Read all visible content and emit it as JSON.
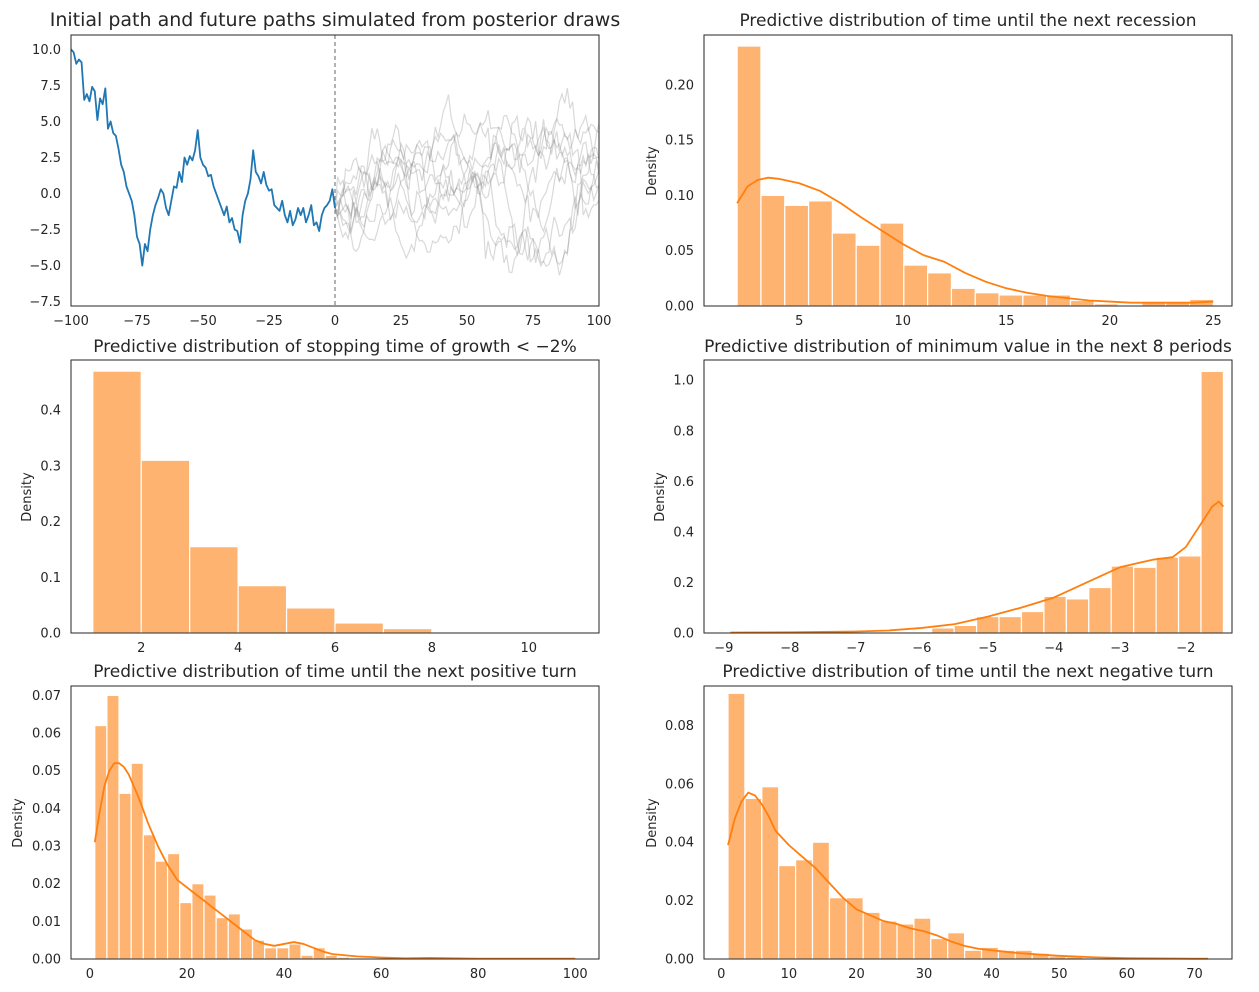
{
  "chart_data": [
    {
      "type": "line",
      "title": "Initial path and future paths simulated from posterior draws",
      "xlim": [
        -100,
        100
      ],
      "ylim": [
        -7.8,
        11
      ],
      "xticks": [
        "−100",
        "−75",
        "−50",
        "−25",
        "0",
        "25",
        "50",
        "75",
        "100"
      ],
      "yticks": [
        "−7.5",
        "−5.0",
        "−2.5",
        "0.0",
        "2.5",
        "5.0",
        "7.5",
        "10.0"
      ],
      "vline_x": 0,
      "series": [
        {
          "role": "initial",
          "color": "#1f77b4",
          "x": [
            -100,
            -99,
            -98,
            -97,
            -96,
            -95,
            -94,
            -93,
            -92,
            -91,
            -90,
            -89,
            -88,
            -87,
            -86,
            -85,
            -84,
            -83,
            -82,
            -81,
            -80,
            -79,
            -78,
            -77,
            -76,
            -75,
            -74,
            -73,
            -72,
            -71,
            -70,
            -69,
            -68,
            -67,
            -66,
            -65,
            -64,
            -63,
            -62,
            -61,
            -60,
            -59,
            -58,
            -57,
            -56,
            -55,
            -54,
            -53,
            -52,
            -51,
            -50,
            -49,
            -48,
            -47,
            -46,
            -45,
            -44,
            -43,
            -42,
            -41,
            -40,
            -39,
            -38,
            -37,
            -36,
            -35,
            -34,
            -33,
            -32,
            -31,
            -30,
            -29,
            -28,
            -27,
            -26,
            -25,
            -24,
            -23,
            -22,
            -21,
            -20,
            -19,
            -18,
            -17,
            -16,
            -15,
            -14,
            -13,
            -12,
            -11,
            -10,
            -9,
            -8,
            -7,
            -6,
            -5,
            -4,
            -3,
            -2,
            -1,
            0
          ],
          "y": [
            10.0,
            9.8,
            9.0,
            9.3,
            9.1,
            6.5,
            6.9,
            6.4,
            7.4,
            7.1,
            5.1,
            6.6,
            6.2,
            7.3,
            4.5,
            5.0,
            4.2,
            4.0,
            3.1,
            2.0,
            1.5,
            0.5,
            0.0,
            -0.5,
            -1.5,
            -3.0,
            -3.5,
            -5.0,
            -3.5,
            -4.0,
            -2.5,
            -1.5,
            -0.8,
            -0.3,
            0.3,
            0.0,
            -1.0,
            -1.5,
            -0.5,
            0.5,
            0.4,
            1.5,
            0.8,
            2.5,
            2.0,
            2.6,
            2.3,
            3.0,
            4.4,
            2.5,
            2.0,
            1.8,
            1.2,
            1.3,
            0.5,
            0.0,
            -0.5,
            -1.0,
            -1.5,
            -0.9,
            -2.0,
            -1.7,
            -2.5,
            -2.6,
            -3.4,
            -1.5,
            -0.5,
            0.0,
            1.0,
            3.0,
            1.5,
            1.2,
            0.7,
            1.5,
            0.6,
            0.2,
            0.3,
            -0.8,
            -1.0,
            -1.2,
            -0.5,
            -1.5,
            -2.0,
            -1.2,
            -2.2,
            -1.8,
            -1.0,
            -1.5,
            -1.0,
            -2.0,
            -1.5,
            -0.8,
            -2.2,
            -2.0,
            -2.6,
            -1.5,
            -1.0,
            -0.8,
            -0.5,
            0.3,
            -1.0
          ]
        }
      ],
      "future_paths": {
        "count": 10,
        "color": "#808080",
        "x_range": [
          0,
          100
        ],
        "start_value": -1.0
      }
    },
    {
      "type": "bar",
      "title": "Predictive distribution of time until the next recession",
      "ylabel": "Density",
      "xlim": [
        0.4,
        25.9
      ],
      "ylim": [
        0,
        0.245
      ],
      "xticks": [
        5,
        10,
        15,
        20,
        25
      ],
      "yticks": [
        "0.00",
        "0.05",
        "0.10",
        "0.15",
        "0.20"
      ],
      "bar_color": "#ffb370",
      "kde_color": "#ff7f0e",
      "bins": [
        {
          "x0": 2.0,
          "x1": 3.15,
          "value": 0.235
        },
        {
          "x0": 3.15,
          "x1": 4.3,
          "value": 0.1
        },
        {
          "x0": 4.3,
          "x1": 5.45,
          "value": 0.091
        },
        {
          "x0": 5.45,
          "x1": 6.6,
          "value": 0.095
        },
        {
          "x0": 6.6,
          "x1": 7.75,
          "value": 0.066
        },
        {
          "x0": 7.75,
          "x1": 8.9,
          "value": 0.055
        },
        {
          "x0": 8.9,
          "x1": 10.05,
          "value": 0.075
        },
        {
          "x0": 10.05,
          "x1": 11.2,
          "value": 0.037
        },
        {
          "x0": 11.2,
          "x1": 12.35,
          "value": 0.03
        },
        {
          "x0": 12.35,
          "x1": 13.5,
          "value": 0.016
        },
        {
          "x0": 13.5,
          "x1": 14.65,
          "value": 0.012
        },
        {
          "x0": 14.65,
          "x1": 15.8,
          "value": 0.01
        },
        {
          "x0": 15.8,
          "x1": 16.95,
          "value": 0.01
        },
        {
          "x0": 16.95,
          "x1": 18.1,
          "value": 0.01
        },
        {
          "x0": 18.1,
          "x1": 19.25,
          "value": 0.005
        },
        {
          "x0": 19.25,
          "x1": 20.4,
          "value": 0.002
        },
        {
          "x0": 20.4,
          "x1": 21.55,
          "value": 0.001
        },
        {
          "x0": 21.55,
          "x1": 22.7,
          "value": 0.004
        },
        {
          "x0": 22.7,
          "x1": 23.85,
          "value": 0.004
        },
        {
          "x0": 23.85,
          "x1": 25.0,
          "value": 0.006
        }
      ],
      "kde": {
        "x": [
          2,
          2.5,
          3,
          3.5,
          4,
          5,
          6,
          7,
          8,
          9,
          10,
          11,
          12,
          13,
          14,
          15,
          16,
          17,
          18,
          19,
          20,
          21,
          22,
          23,
          24,
          25
        ],
        "y": [
          0.093,
          0.108,
          0.114,
          0.116,
          0.115,
          0.111,
          0.104,
          0.093,
          0.08,
          0.068,
          0.056,
          0.046,
          0.04,
          0.03,
          0.022,
          0.016,
          0.012,
          0.009,
          0.007,
          0.005,
          0.004,
          0.003,
          0.003,
          0.003,
          0.003,
          0.004
        ]
      }
    },
    {
      "type": "bar",
      "title": "Predictive distribution of stopping time of growth < −2%",
      "ylabel": "Density",
      "xlim": [
        0.55,
        11.45
      ],
      "ylim": [
        0,
        0.49
      ],
      "xticks": [
        2,
        4,
        6,
        8,
        10
      ],
      "yticks": [
        "0.0",
        "0.1",
        "0.2",
        "0.3",
        "0.4"
      ],
      "bar_color": "#ffb370",
      "bins": [
        {
          "x0": 1.0,
          "x1": 2.0,
          "value": 0.47
        },
        {
          "x0": 2.0,
          "x1": 3.0,
          "value": 0.31
        },
        {
          "x0": 3.0,
          "x1": 4.0,
          "value": 0.155
        },
        {
          "x0": 4.0,
          "x1": 5.0,
          "value": 0.085
        },
        {
          "x0": 5.0,
          "x1": 6.0,
          "value": 0.045
        },
        {
          "x0": 6.0,
          "x1": 7.0,
          "value": 0.018
        },
        {
          "x0": 7.0,
          "x1": 8.0,
          "value": 0.008
        },
        {
          "x0": 8.0,
          "x1": 9.0,
          "value": 0.002
        },
        {
          "x0": 9.0,
          "x1": 10.0,
          "value": 0.001
        },
        {
          "x0": 10.0,
          "x1": 11.0,
          "value": 0.0
        }
      ]
    },
    {
      "type": "bar",
      "title": "Predictive distribution of minimum value in the next 8 periods",
      "ylabel": "Density",
      "xlim": [
        -9.3,
        -1.3
      ],
      "ylim": [
        0,
        1.08
      ],
      "xticks": [
        "−9",
        "−8",
        "−7",
        "−6",
        "−5",
        "−4",
        "−3",
        "−2"
      ],
      "xtick_values": [
        -9,
        -8,
        -7,
        -6,
        -5,
        -4,
        -3,
        -2
      ],
      "yticks": [
        "0.0",
        "0.2",
        "0.4",
        "0.6",
        "0.8",
        "1.0"
      ],
      "bar_color": "#ffb370",
      "kde_color": "#ff7f0e",
      "bins": [
        {
          "x0": -8.9,
          "x1": -8.56,
          "value": 0.002
        },
        {
          "x0": -6.19,
          "x1": -5.85,
          "value": 0.002
        },
        {
          "x0": -5.85,
          "x1": -5.51,
          "value": 0.02
        },
        {
          "x0": -5.51,
          "x1": -5.17,
          "value": 0.03
        },
        {
          "x0": -5.17,
          "x1": -4.83,
          "value": 0.065
        },
        {
          "x0": -4.83,
          "x1": -4.49,
          "value": 0.065
        },
        {
          "x0": -4.49,
          "x1": -4.15,
          "value": 0.085
        },
        {
          "x0": -4.15,
          "x1": -3.81,
          "value": 0.145
        },
        {
          "x0": -3.81,
          "x1": -3.47,
          "value": 0.135
        },
        {
          "x0": -3.47,
          "x1": -3.13,
          "value": 0.18
        },
        {
          "x0": -3.13,
          "x1": -2.79,
          "value": 0.265
        },
        {
          "x0": -2.79,
          "x1": -2.45,
          "value": 0.26
        },
        {
          "x0": -2.45,
          "x1": -2.11,
          "value": 0.3
        },
        {
          "x0": -2.11,
          "x1": -1.77,
          "value": 0.305
        },
        {
          "x0": -1.77,
          "x1": -1.43,
          "value": 1.035
        }
      ],
      "kde": {
        "x": [
          -8.9,
          -8.0,
          -7.0,
          -6.5,
          -6.0,
          -5.5,
          -5.0,
          -4.5,
          -4.0,
          -3.5,
          -3.0,
          -2.5,
          -2.2,
          -2.0,
          -1.8,
          -1.6,
          -1.5,
          -1.43
        ],
        "y": [
          0.002,
          0.003,
          0.006,
          0.01,
          0.02,
          0.035,
          0.065,
          0.1,
          0.14,
          0.2,
          0.26,
          0.29,
          0.3,
          0.34,
          0.42,
          0.5,
          0.52,
          0.5
        ]
      }
    },
    {
      "type": "bar",
      "title": "Predictive distribution of time until the next positive turn",
      "ylabel": "Density",
      "xlim": [
        -3.9,
        104.9
      ],
      "ylim": [
        0,
        0.0725
      ],
      "xticks": [
        0,
        20,
        40,
        60,
        80,
        100
      ],
      "yticks": [
        "0.00",
        "0.01",
        "0.02",
        "0.03",
        "0.04",
        "0.05",
        "0.06",
        "0.07"
      ],
      "bar_color": "#ffb370",
      "kde_color": "#ff7f0e",
      "bins": [
        {
          "x0": 1.0,
          "x1": 3.5,
          "value": 0.062
        },
        {
          "x0": 3.5,
          "x1": 6.0,
          "value": 0.07
        },
        {
          "x0": 6.0,
          "x1": 8.5,
          "value": 0.044
        },
        {
          "x0": 8.5,
          "x1": 11.0,
          "value": 0.052
        },
        {
          "x0": 11.0,
          "x1": 13.5,
          "value": 0.033
        },
        {
          "x0": 13.5,
          "x1": 16.0,
          "value": 0.026
        },
        {
          "x0": 16.0,
          "x1": 18.5,
          "value": 0.028
        },
        {
          "x0": 18.5,
          "x1": 21.0,
          "value": 0.015
        },
        {
          "x0": 21.0,
          "x1": 23.5,
          "value": 0.02
        },
        {
          "x0": 23.5,
          "x1": 26.0,
          "value": 0.017
        },
        {
          "x0": 26.0,
          "x1": 28.5,
          "value": 0.011
        },
        {
          "x0": 28.5,
          "x1": 31.0,
          "value": 0.012
        },
        {
          "x0": 31.0,
          "x1": 33.5,
          "value": 0.008
        },
        {
          "x0": 33.5,
          "x1": 36.0,
          "value": 0.005
        },
        {
          "x0": 36.0,
          "x1": 38.5,
          "value": 0.003
        },
        {
          "x0": 38.5,
          "x1": 41.0,
          "value": 0.003
        },
        {
          "x0": 41.0,
          "x1": 43.5,
          "value": 0.004
        },
        {
          "x0": 43.5,
          "x1": 46.0,
          "value": 0.001
        },
        {
          "x0": 46.0,
          "x1": 48.5,
          "value": 0.003
        },
        {
          "x0": 48.5,
          "x1": 51.0,
          "value": 0.001
        },
        {
          "x0": 51.0,
          "x1": 53.5,
          "value": 0.0005
        },
        {
          "x0": 56.0,
          "x1": 58.5,
          "value": 0.0003
        },
        {
          "x0": 71.0,
          "x1": 73.5,
          "value": 0.0003
        },
        {
          "x0": 98.5,
          "x1": 101.0,
          "value": 0.0003
        }
      ],
      "kde": {
        "x": [
          1,
          2,
          3,
          4,
          5,
          6,
          7,
          8,
          10,
          12,
          14,
          16,
          18,
          20,
          22,
          24,
          26,
          28,
          30,
          32,
          34,
          36,
          38,
          40,
          42,
          44,
          46,
          48,
          50,
          55,
          60,
          65,
          70,
          75,
          80,
          90,
          100
        ],
        "y": [
          0.031,
          0.039,
          0.046,
          0.05,
          0.052,
          0.052,
          0.051,
          0.049,
          0.043,
          0.036,
          0.03,
          0.025,
          0.021,
          0.019,
          0.017,
          0.015,
          0.013,
          0.011,
          0.009,
          0.007,
          0.005,
          0.004,
          0.0035,
          0.004,
          0.0045,
          0.004,
          0.003,
          0.002,
          0.0013,
          0.0007,
          0.0004,
          0.0002,
          0.0003,
          0.0002,
          0.0001,
          0.0001,
          0.0001
        ]
      }
    },
    {
      "type": "bar",
      "title": "Predictive distribution of time until the next negative turn",
      "ylabel": "Density",
      "xlim": [
        -2.55,
        75.55
      ],
      "ylim": [
        0,
        0.0935
      ],
      "xticks": [
        0,
        10,
        20,
        30,
        40,
        50,
        60,
        70
      ],
      "yticks": [
        "0.00",
        "0.02",
        "0.04",
        "0.06",
        "0.08"
      ],
      "bar_color": "#ffb370",
      "kde_color": "#ff7f0e",
      "bins": [
        {
          "x0": 1.0,
          "x1": 3.5,
          "value": 0.091
        },
        {
          "x0": 3.5,
          "x1": 6.0,
          "value": 0.055
        },
        {
          "x0": 6.0,
          "x1": 8.5,
          "value": 0.059
        },
        {
          "x0": 8.5,
          "x1": 11.0,
          "value": 0.032
        },
        {
          "x0": 11.0,
          "x1": 13.5,
          "value": 0.034
        },
        {
          "x0": 13.5,
          "x1": 16.0,
          "value": 0.04
        },
        {
          "x0": 16.0,
          "x1": 18.5,
          "value": 0.021
        },
        {
          "x0": 18.5,
          "x1": 21.0,
          "value": 0.021
        },
        {
          "x0": 21.0,
          "x1": 23.5,
          "value": 0.016
        },
        {
          "x0": 23.5,
          "x1": 26.0,
          "value": 0.013
        },
        {
          "x0": 26.0,
          "x1": 28.5,
          "value": 0.012
        },
        {
          "x0": 28.5,
          "x1": 31.0,
          "value": 0.014
        },
        {
          "x0": 31.0,
          "x1": 33.5,
          "value": 0.007
        },
        {
          "x0": 33.5,
          "x1": 36.0,
          "value": 0.009
        },
        {
          "x0": 36.0,
          "x1": 38.5,
          "value": 0.003
        },
        {
          "x0": 38.5,
          "x1": 41.0,
          "value": 0.004
        },
        {
          "x0": 41.0,
          "x1": 43.5,
          "value": 0.003
        },
        {
          "x0": 43.5,
          "x1": 46.0,
          "value": 0.003
        },
        {
          "x0": 46.0,
          "x1": 48.5,
          "value": 0.002
        },
        {
          "x0": 48.5,
          "x1": 51.0,
          "value": 0.001
        },
        {
          "x0": 51.0,
          "x1": 53.5,
          "value": 0.0007
        },
        {
          "x0": 56.0,
          "x1": 58.5,
          "value": 0.0004
        },
        {
          "x0": 61.0,
          "x1": 63.5,
          "value": 0.0003
        }
      ],
      "kde": {
        "x": [
          1,
          2,
          3,
          4,
          5,
          6,
          7,
          8,
          10,
          12,
          14,
          16,
          18,
          20,
          22,
          24,
          26,
          28,
          30,
          32,
          34,
          36,
          38,
          40,
          42,
          44,
          46,
          48,
          50,
          55,
          60,
          65,
          70,
          72
        ],
        "y": [
          0.039,
          0.048,
          0.054,
          0.057,
          0.056,
          0.053,
          0.049,
          0.044,
          0.039,
          0.035,
          0.031,
          0.026,
          0.021,
          0.017,
          0.015,
          0.013,
          0.012,
          0.0105,
          0.0095,
          0.008,
          0.006,
          0.0045,
          0.0035,
          0.003,
          0.0025,
          0.002,
          0.0017,
          0.0014,
          0.0011,
          0.0006,
          0.0003,
          0.0002,
          0.0001,
          0.0001
        ]
      }
    }
  ]
}
